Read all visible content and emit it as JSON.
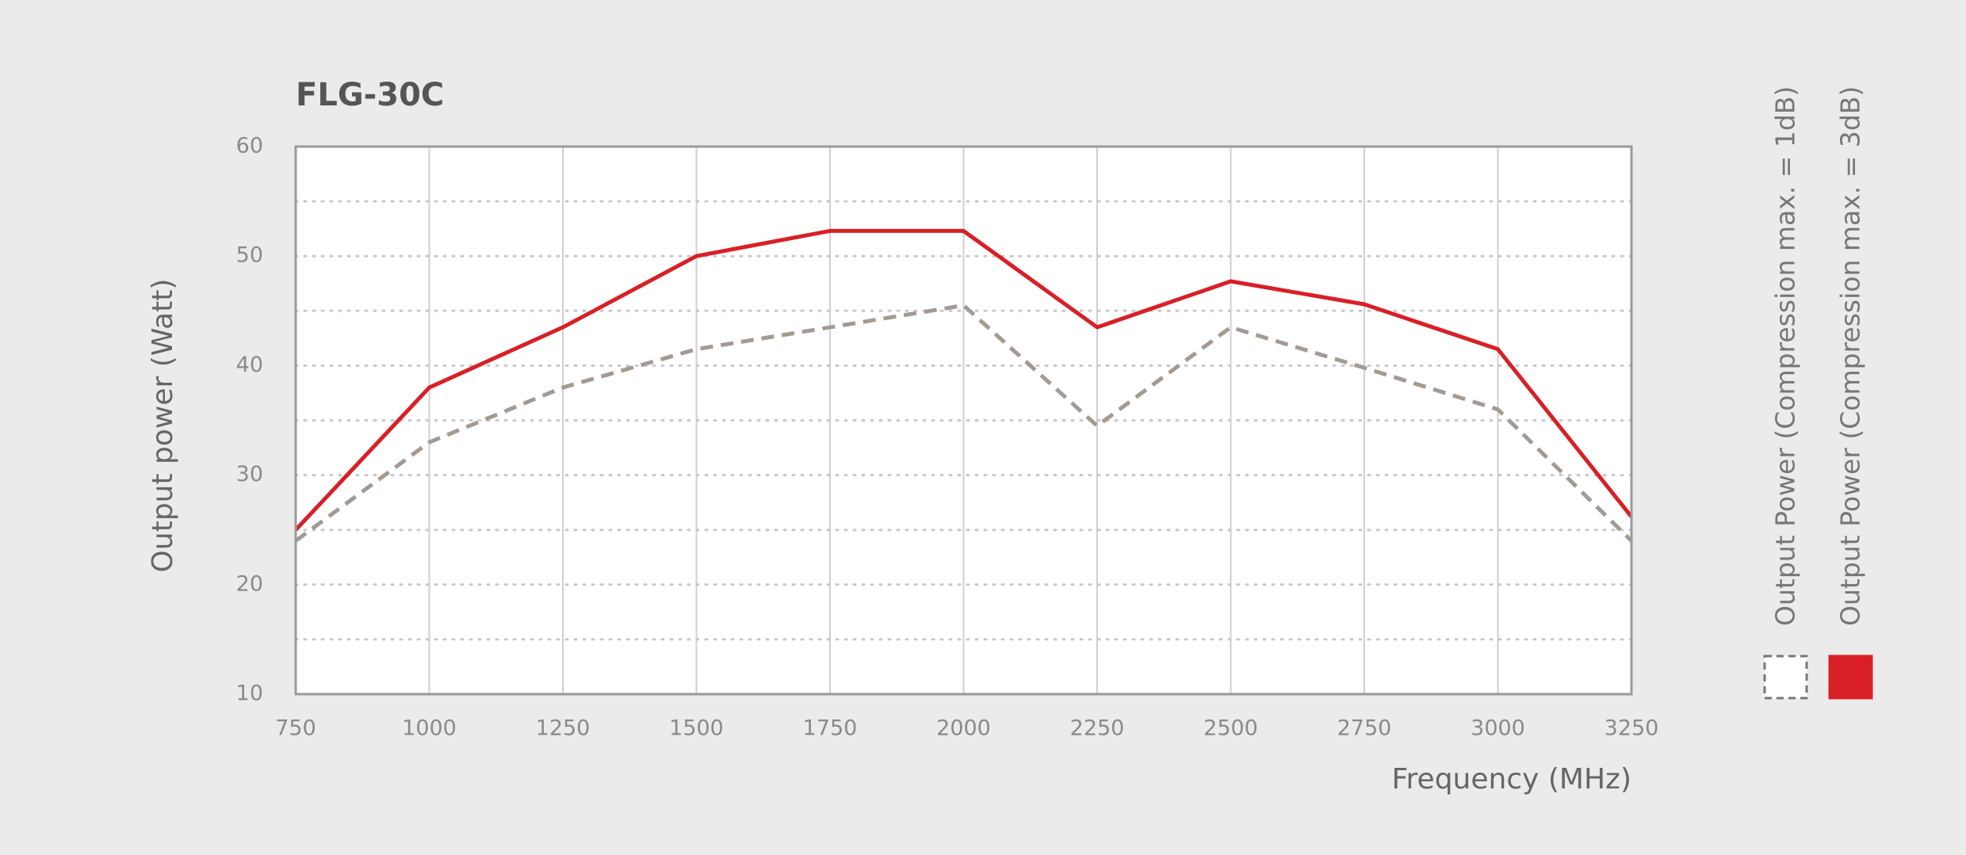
{
  "chart_data": {
    "type": "line",
    "title": "FLG-30C",
    "x_label": "Frequency (MHz)",
    "y_label": "Output power (Watt)",
    "x": [
      750,
      1000,
      1250,
      1500,
      1750,
      2000,
      2250,
      2500,
      2750,
      3000,
      3250
    ],
    "series": [
      {
        "name": "Output Power (Compression max. = 1dB)",
        "color": "#a39a92",
        "dashed": true,
        "values": [
          24,
          33,
          38,
          41.5,
          43.5,
          45.5,
          34.5,
          43.5,
          39.8,
          36,
          24
        ]
      },
      {
        "name": "Output Power (Compression max. = 3dB)",
        "color": "#d91f26",
        "dashed": false,
        "values": [
          25,
          38,
          43.5,
          50,
          52.3,
          52.3,
          43.5,
          47.7,
          45.6,
          41.5,
          26.2
        ]
      }
    ],
    "xlim": [
      750,
      3250
    ],
    "xticks": [
      750,
      1000,
      1250,
      1500,
      1750,
      2000,
      2250,
      2500,
      2750,
      3000,
      3250
    ],
    "ylim": [
      10,
      60
    ],
    "yticks": [
      10,
      20,
      30,
      40,
      50,
      60
    ],
    "y_minor_grid": [
      15,
      25,
      35,
      45,
      55
    ],
    "grid": true,
    "legend": "right"
  }
}
